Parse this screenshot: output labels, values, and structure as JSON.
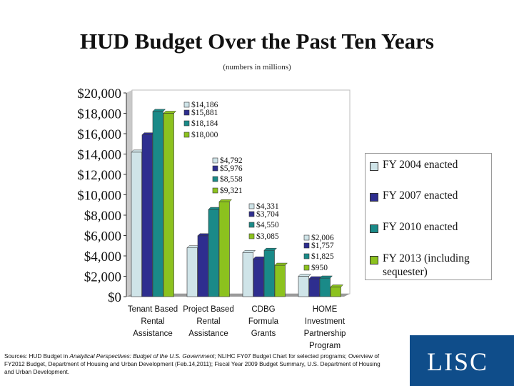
{
  "title": "HUD Budget Over the Past Ten Years",
  "subtitle": "(numbers in millions)",
  "legend": [
    {
      "label": "FY 2004 enacted",
      "color": "#cfe4e8"
    },
    {
      "label": "FY 2007 enacted",
      "color": "#2e2e8f"
    },
    {
      "label": "FY 2010 enacted",
      "color": "#1a8a88"
    },
    {
      "label": "FY 2013 (including sequester)",
      "color": "#8cc21e"
    }
  ],
  "sources_prefix": "Sources: HUD Budget in ",
  "sources_italic": "Analytical Perspectives: Budget of the U.S. Government;",
  "sources_rest": " NLIHC FY07 Budget Chart for selected programs; Overview of FY2012 Budget, Department of Housing and Urban Development (Feb.14,2011); Fiscal Year 2009 Budget Summary, U.S. Department of Housing and Urban Development.",
  "logo": "LISC",
  "chart_data": {
    "type": "bar",
    "title": "HUD Budget Over the Past Ten Years",
    "ylabel": "",
    "xlabel": "",
    "ylim": [
      0,
      20000
    ],
    "yticks": [
      "$0",
      "$2,000",
      "$4,000",
      "$6,000",
      "$8,000",
      "$10,000",
      "$12,000",
      "$14,000",
      "$16,000",
      "$18,000",
      "$20,000"
    ],
    "categories": [
      [
        "Tenant Based",
        "Rental",
        "Assistance"
      ],
      [
        "Project Based",
        "Rental",
        "Assistance"
      ],
      [
        "CDBG",
        "Formula",
        "Grants"
      ],
      [
        "HOME",
        "Investment",
        "Partnership",
        "Program"
      ]
    ],
    "series": [
      {
        "name": "FY 2004 enacted",
        "values": [
          14186,
          4792,
          4331,
          2006
        ]
      },
      {
        "name": "FY 2007 enacted",
        "values": [
          15881,
          5976,
          3704,
          1757
        ]
      },
      {
        "name": "FY 2010 enacted",
        "values": [
          18184,
          8558,
          4550,
          1825
        ]
      },
      {
        "name": "FY 2013 (including sequester)",
        "values": [
          18000,
          9321,
          3085,
          950
        ]
      }
    ],
    "annotations": [
      [
        "$14,186",
        "$15,881",
        "$18,184",
        "$18,000"
      ],
      [
        "$4,792",
        "$5,976",
        "$8,558",
        "$9,321"
      ],
      [
        "$4,331",
        "$3,704",
        "$4,550",
        "$3,085"
      ],
      [
        "$2,006",
        "$1,757",
        "$1,825",
        "$950"
      ]
    ]
  }
}
